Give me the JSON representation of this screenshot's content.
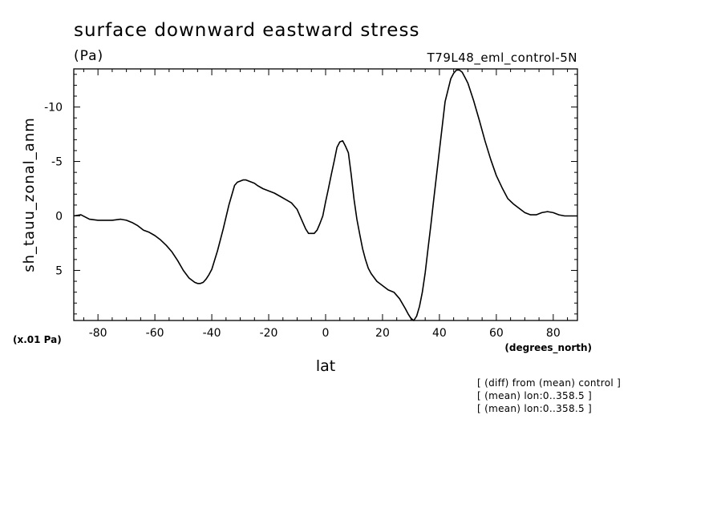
{
  "chart_data": {
    "type": "line",
    "title": "surface downward eastward stress",
    "subtitle": "(Pa)",
    "run_label": "T79L48_eml_control-5N",
    "xlabel": "lat",
    "x_units": "(degrees_north)",
    "ylabel": "sh_tauu_zonal_anm",
    "y_scale_note": "(x.01 Pa)",
    "xlim": [
      -88.5,
      88.5
    ],
    "ylim": [
      9.6,
      -13.5
    ],
    "y_inverted": true,
    "x_ticks": [
      -80,
      -60,
      -40,
      -20,
      0,
      20,
      40,
      60,
      80
    ],
    "x_tick_labels": [
      "-80",
      "-60",
      "-40",
      "-20",
      "0",
      "20",
      "40",
      "60",
      "80"
    ],
    "y_ticks": [
      -10,
      -5,
      0,
      5
    ],
    "y_tick_labels": [
      "-10",
      "-5",
      "0",
      "5"
    ],
    "grid": false,
    "series": [
      {
        "x": [
          -88.5,
          -86,
          -83,
          -80,
          -78,
          -75,
          -72,
          -70,
          -68,
          -66,
          -64,
          -62,
          -60,
          -58,
          -56,
          -54,
          -52,
          -50,
          -48,
          -46,
          -45,
          -44,
          -43,
          -42,
          -41,
          -40,
          -38,
          -36,
          -34,
          -32,
          -31,
          -30,
          -29,
          -28,
          -27,
          -26,
          -25,
          -24,
          -22,
          -20,
          -18,
          -16,
          -14,
          -12,
          -10,
          -8,
          -7,
          -6,
          -5,
          -4,
          -3,
          -2,
          -1,
          0,
          1,
          2,
          3,
          4,
          5,
          6,
          7,
          8,
          9,
          10,
          11,
          12,
          13,
          14,
          15,
          16,
          18,
          20,
          22,
          24,
          26,
          28,
          29,
          30,
          31,
          32,
          33,
          34,
          35,
          36,
          37,
          38,
          40,
          42,
          44,
          45,
          46,
          47,
          48,
          49,
          50,
          52,
          54,
          56,
          58,
          60,
          62,
          64,
          66,
          68,
          70,
          72,
          74,
          76,
          78,
          80,
          82,
          84,
          86,
          88.5
        ],
        "y": [
          0.0,
          -0.1,
          0.3,
          0.4,
          0.4,
          0.4,
          0.3,
          0.4,
          0.6,
          0.9,
          1.3,
          1.5,
          1.8,
          2.2,
          2.7,
          3.3,
          4.1,
          5.0,
          5.7,
          6.1,
          6.2,
          6.2,
          6.1,
          5.8,
          5.4,
          4.9,
          3.2,
          1.2,
          -1.0,
          -2.8,
          -3.1,
          -3.2,
          -3.3,
          -3.3,
          -3.2,
          -3.1,
          -3.0,
          -2.8,
          -2.5,
          -2.3,
          -2.1,
          -1.8,
          -1.5,
          -1.2,
          -0.6,
          0.6,
          1.2,
          1.6,
          1.6,
          1.6,
          1.3,
          0.7,
          0.0,
          -1.3,
          -2.5,
          -3.8,
          -5.0,
          -6.3,
          -6.8,
          -6.9,
          -6.4,
          -5.8,
          -3.8,
          -1.5,
          0.3,
          1.7,
          3.0,
          4.0,
          4.8,
          5.3,
          6.0,
          6.4,
          6.8,
          7.0,
          7.6,
          8.5,
          9.0,
          9.4,
          9.6,
          9.2,
          8.3,
          7.0,
          5.2,
          3.0,
          0.8,
          -1.5,
          -6.0,
          -10.5,
          -12.6,
          -13.1,
          -13.4,
          -13.4,
          -13.2,
          -12.7,
          -12.2,
          -10.6,
          -8.8,
          -6.9,
          -5.2,
          -3.7,
          -2.6,
          -1.6,
          -1.1,
          -0.7,
          -0.3,
          -0.1,
          -0.1,
          -0.3,
          -0.4,
          -0.3,
          -0.1,
          0.0,
          0.0,
          0.0
        ]
      }
    ]
  },
  "notes": [
    "[ (diff) from (mean) control ]",
    "[ (mean) lon:0..358.5 ]",
    "[ (mean) lon:0..358.5 ]"
  ]
}
